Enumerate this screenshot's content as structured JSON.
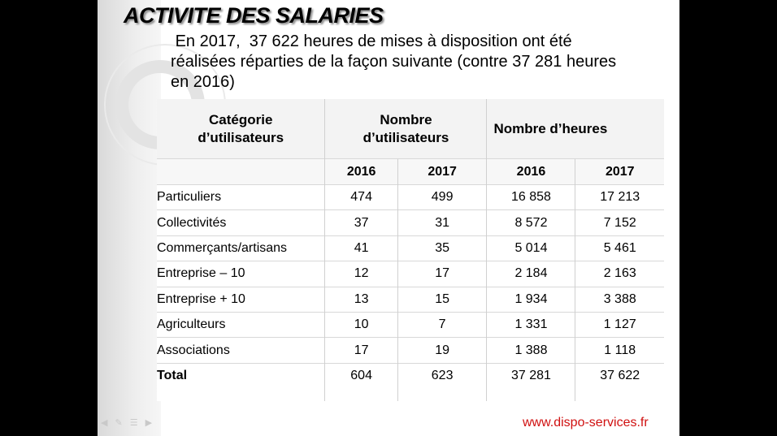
{
  "slide": {
    "title": "ACTIVITE DES SALARIES",
    "intro": " En 2017,  37 622 heures de mises à disposition ont été\nréalisées réparties de la façon suivante (contre 37 281 heures\nen 2016)",
    "website": "www.dispo-services.fr"
  },
  "table": {
    "headers": {
      "category": "Catégorie\nd’utilisateurs",
      "users": "Nombre\nd’utilisateurs",
      "hours": "Nombre d’heures"
    },
    "years": [
      "2016",
      "2017",
      "2016",
      "2017"
    ],
    "rows": [
      {
        "label": "Particuliers",
        "users_2016": "474",
        "users_2017": "499",
        "hours_2016": "16 858",
        "hours_2017": "17 213"
      },
      {
        "label": "Collectivités",
        "users_2016": "37",
        "users_2017": "31",
        "hours_2016": "8 572",
        "hours_2017": "7 152"
      },
      {
        "label": "Commerçants/artisans",
        "users_2016": "41",
        "users_2017": "35",
        "hours_2016": "5 014",
        "hours_2017": "5 461"
      },
      {
        "label": "Entreprise – 10",
        "users_2016": "12",
        "users_2017": "17",
        "hours_2016": "2 184",
        "hours_2017": "2 163"
      },
      {
        "label": "Entreprise  + 10",
        "users_2016": "13",
        "users_2017": "15",
        "hours_2016": "1 934",
        "hours_2017": "3 388"
      },
      {
        "label": "Agriculteurs",
        "users_2016": "10",
        "users_2017": "7",
        "hours_2016": "1 331",
        "hours_2017": "1 127"
      },
      {
        "label": "Associations",
        "users_2016": "17",
        "users_2017": "19",
        "hours_2016": "1 388",
        "hours_2017": "1 118"
      }
    ],
    "total": {
      "label": "Total",
      "users_2016": "604",
      "users_2017": "623",
      "hours_2016": "37 281",
      "hours_2017": "37 622"
    }
  },
  "nav_icons": [
    "arrow-left-icon",
    "pen-icon",
    "menu-icon",
    "arrow-right-icon"
  ],
  "colors": {
    "website": "#d01010",
    "background": "#000000",
    "slide": "#ffffff"
  }
}
